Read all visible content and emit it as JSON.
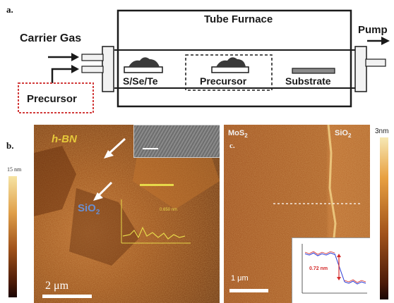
{
  "panel_a": {
    "label": "a.",
    "furnace_title": "Tube Furnace",
    "carrier_gas": "Carrier Gas",
    "pump": "Pump",
    "precursor_box": "Precursor",
    "zones": [
      "S/Se/Te",
      "Precursor",
      "Substrate"
    ]
  },
  "panel_b": {
    "label": "b.",
    "material": "h-BN",
    "substrate": "SiO",
    "substrate_sub": "2",
    "scale_bar": "2 μm",
    "colorbar_top": "15 nm",
    "inset_height": "0.650 nm"
  },
  "panel_c": {
    "label": "c.",
    "left_material": "MoS",
    "left_sub": "2",
    "right_material": "SiO",
    "right_sub": "2",
    "colorbar_top": "3nm",
    "scale_bar": "1 μm",
    "inset_step": "0.72 nm"
  },
  "colors": {
    "afm_dark": "#3a1406",
    "afm_mid": "#a0521a",
    "afm_light": "#e8a040",
    "hbn_label": "#e6c83a",
    "sio2_label": "#6a8fd0",
    "precursor_border": "#d23c3c",
    "inset_red": "#d42a2a",
    "inset_blue": "#2a3ad4"
  }
}
